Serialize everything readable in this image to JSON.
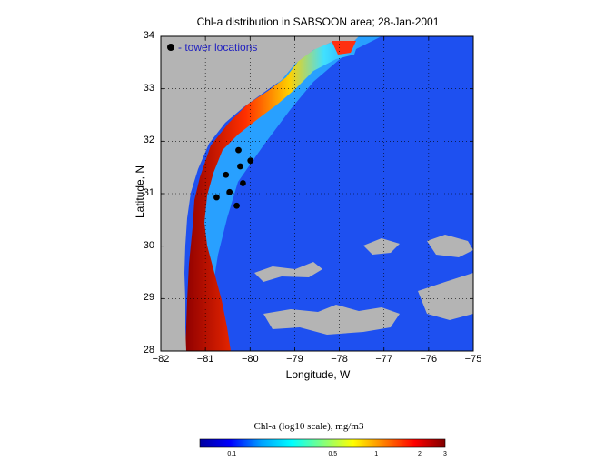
{
  "title": "Chl-a distribution in SABSOON area; 28-Jan-2001",
  "xlabel": "Longitude, W",
  "ylabel": "Latitude, N",
  "legend_label": "- tower locations",
  "x_ticks": [
    "−82",
    "−81",
    "−80",
    "−79",
    "−78",
    "−77",
    "−76",
    "−75"
  ],
  "y_ticks": [
    "34",
    "33",
    "32",
    "31",
    "30",
    "29",
    "28"
  ],
  "colorbar": {
    "label": "Chl-a (log10 scale), mg/m3",
    "ticks": [
      "0.1",
      "0.5",
      "1",
      "2",
      "3"
    ],
    "colors": [
      "#0000a0",
      "#0000ff",
      "#00a0ff",
      "#00ffff",
      "#80ff80",
      "#ffff00",
      "#ff8000",
      "#ff0000",
      "#800000"
    ]
  },
  "map_colors": {
    "land": "#b4b4b4",
    "offshore": "#1e50f0",
    "shelf": "#28a0ff",
    "coastal_high": "#b00000"
  },
  "chart_data": {
    "type": "scatter",
    "title": "Chl-a distribution in SABSOON area; 28-Jan-2001",
    "xlabel": "Longitude, W",
    "ylabel": "Latitude, N",
    "xlim": [
      -82,
      -75
    ],
    "ylim": [
      28,
      34
    ],
    "grid": true,
    "legend": "top-left",
    "series": [
      {
        "name": "tower locations",
        "points": [
          {
            "lon": -80.26,
            "lat": 31.83
          },
          {
            "lon": -79.99,
            "lat": 31.63
          },
          {
            "lon": -80.22,
            "lat": 31.52
          },
          {
            "lon": -80.54,
            "lat": 31.36
          },
          {
            "lon": -80.16,
            "lat": 31.2
          },
          {
            "lon": -80.46,
            "lat": 31.03
          },
          {
            "lon": -80.75,
            "lat": 30.93
          },
          {
            "lon": -80.3,
            "lat": 30.77
          }
        ]
      }
    ]
  }
}
